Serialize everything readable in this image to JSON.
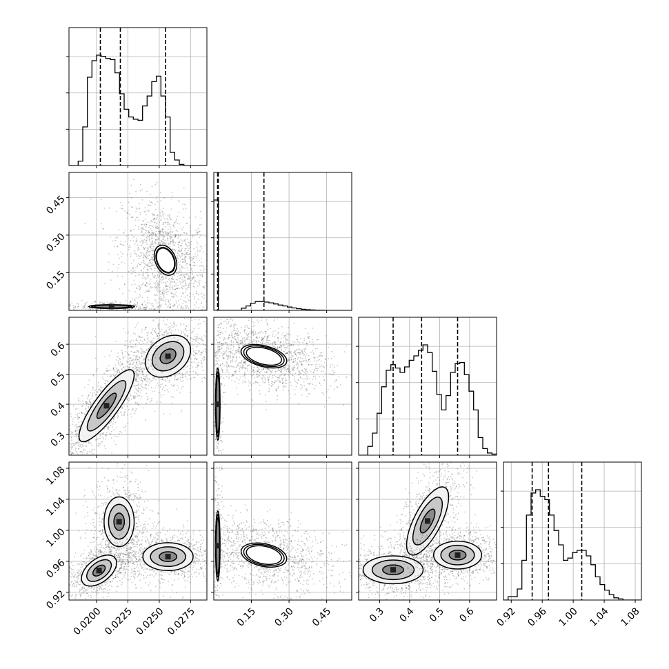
{
  "chart_data": {
    "type": "corner",
    "title": "",
    "grid": true,
    "parameters": [
      {
        "ticks": [
          0.02,
          0.0225,
          0.025,
          0.0275
        ],
        "tick_labels": [
          "0.0200",
          "0.0225",
          "0.0250",
          "0.0275"
        ],
        "range": [
          0.0178,
          0.0288
        ]
      },
      {
        "ticks": [
          0.15,
          0.3,
          0.45
        ],
        "tick_labels": [
          "0.15",
          "0.30",
          "0.45"
        ],
        "range": [
          0.0,
          0.55
        ]
      },
      {
        "ticks": [
          0.3,
          0.4,
          0.5,
          0.6
        ],
        "tick_labels": [
          "0.3",
          "0.4",
          "0.5",
          "0.6"
        ],
        "range": [
          0.23,
          0.69
        ]
      },
      {
        "ticks": [
          0.92,
          0.96,
          1.0,
          1.04,
          1.08
        ],
        "tick_labels": [
          "0.92",
          "0.96",
          "1.00",
          "1.04",
          "1.08"
        ],
        "range": [
          0.91,
          1.088
        ]
      }
    ],
    "histograms": [
      {
        "param": 0,
        "quantiles": [
          0.0203,
          0.0219,
          0.0255
        ],
        "bin_edges": [
          0.0178,
          0.01817,
          0.01853,
          0.0189,
          0.01927,
          0.01963,
          0.02,
          0.02037,
          0.02073,
          0.0211,
          0.02147,
          0.02183,
          0.0222,
          0.02257,
          0.02293,
          0.0233,
          0.02367,
          0.02403,
          0.0244,
          0.02477,
          0.02513,
          0.0255,
          0.02587,
          0.02623,
          0.0266,
          0.02697,
          0.02733,
          0.0277,
          0.02807,
          0.02843,
          0.0288
        ],
        "counts": [
          0.0,
          0.0,
          0.04,
          0.35,
          0.8,
          0.95,
          1.0,
          0.99,
          0.97,
          0.96,
          0.84,
          0.65,
          0.51,
          0.44,
          0.42,
          0.41,
          0.54,
          0.63,
          0.76,
          0.81,
          0.63,
          0.44,
          0.12,
          0.05,
          0.01,
          0.0,
          0.0,
          0.0,
          0.0,
          0.0
        ]
      },
      {
        "param": 1,
        "quantiles": [
          0.015,
          0.018,
          0.2
        ],
        "bin_edges": [
          0.0,
          0.01833,
          0.03667,
          0.055,
          0.07333,
          0.09167,
          0.11,
          0.12833,
          0.14667,
          0.165,
          0.18333,
          0.20167,
          0.22,
          0.23833,
          0.25667,
          0.275,
          0.29333,
          0.31167,
          0.33,
          0.34833,
          0.36667,
          0.385,
          0.40333,
          0.42167,
          0.44,
          0.45833,
          0.47667,
          0.495,
          0.51333,
          0.53167,
          0.55
        ],
        "counts": [
          1.0,
          0.0,
          0.0,
          0.0,
          0.0,
          0.0,
          0.02,
          0.04,
          0.065,
          0.08,
          0.08,
          0.075,
          0.068,
          0.058,
          0.048,
          0.04,
          0.03,
          0.022,
          0.015,
          0.01,
          0.006,
          0.004,
          0.002,
          0.001,
          0.0,
          0.0,
          0.0,
          0.0,
          0.0,
          0.0
        ]
      },
      {
        "param": 2,
        "quantiles": [
          0.345,
          0.44,
          0.56
        ],
        "bin_edges": [
          0.23,
          0.24533,
          0.26067,
          0.276,
          0.29133,
          0.30667,
          0.322,
          0.33733,
          0.35267,
          0.368,
          0.38333,
          0.39867,
          0.414,
          0.42933,
          0.44467,
          0.46,
          0.47533,
          0.49067,
          0.506,
          0.52133,
          0.53667,
          0.552,
          0.56733,
          0.58267,
          0.598,
          0.61333,
          0.62867,
          0.644,
          0.65933,
          0.67467,
          0.69
        ],
        "counts": [
          0.0,
          0.0,
          0.08,
          0.2,
          0.38,
          0.62,
          0.77,
          0.82,
          0.79,
          0.75,
          0.8,
          0.86,
          0.9,
          0.95,
          1.0,
          0.93,
          0.76,
          0.55,
          0.41,
          0.54,
          0.75,
          0.83,
          0.84,
          0.73,
          0.58,
          0.41,
          0.16,
          0.06,
          0.02,
          0.01
        ]
      },
      {
        "param": 3,
        "quantiles": [
          0.947,
          0.968,
          1.011
        ],
        "bin_edges": [
          0.91,
          0.91593,
          0.92187,
          0.9278,
          0.93373,
          0.93967,
          0.9456,
          0.95153,
          0.95747,
          0.9634,
          0.96933,
          0.97527,
          0.9812,
          0.98713,
          0.99307,
          0.999,
          1.00493,
          1.01087,
          1.0168,
          1.02273,
          1.02867,
          1.0346,
          1.04053,
          1.04647,
          1.0524,
          1.05833,
          1.06427,
          1.0702,
          1.07613,
          1.08207,
          1.088
        ],
        "counts": [
          0.0,
          0.03,
          0.03,
          0.1,
          0.36,
          0.77,
          0.97,
          1.0,
          0.94,
          0.91,
          0.77,
          0.63,
          0.5,
          0.36,
          0.38,
          0.43,
          0.45,
          0.45,
          0.4,
          0.32,
          0.21,
          0.14,
          0.09,
          0.05,
          0.02,
          0.01,
          0.0,
          0.0,
          0.0,
          0.0
        ]
      }
    ],
    "scatter_blobs": [
      {
        "row": 1,
        "col": 0,
        "center": [
          0.0255,
          0.2
        ],
        "sd": [
          0.0009,
          0.06
        ],
        "rho": -0.3,
        "n": 1500,
        "contours": [
          [
            0.8,
            0.85,
            1.0
          ]
        ],
        "core_fill": true
      },
      {
        "row": 1,
        "col": 0,
        "center": [
          0.0212,
          0.015
        ],
        "sd": [
          0.0014,
          0.006
        ],
        "rho": 0.0,
        "n": 300,
        "contours": [
          [
            1.0,
            1.15,
            1.3
          ]
        ],
        "core_fill": false
      },
      {
        "row": 2,
        "col": 0,
        "center": [
          0.0257,
          0.56
        ],
        "sd": [
          0.0009,
          0.035
        ],
        "rho": 0.3,
        "n": 900,
        "contours": [
          [
            0.7,
            1.4,
            2.0
          ]
        ],
        "core_fill": false
      },
      {
        "row": 2,
        "col": 0,
        "center": [
          0.0208,
          0.395
        ],
        "sd": [
          0.0011,
          0.06
        ],
        "rho": 0.85,
        "n": 1300,
        "contours": [
          [
            0.7,
            1.4,
            2.0
          ]
        ],
        "core_fill": false
      },
      {
        "row": 2,
        "col": 1,
        "center": [
          0.2,
          0.56
        ],
        "sd": [
          0.07,
          0.03
        ],
        "rho": -0.4,
        "n": 1500,
        "contours": [
          [
            1.0,
            1.15,
            1.3
          ]
        ],
        "core_fill": true
      },
      {
        "row": 2,
        "col": 1,
        "center": [
          0.016,
          0.4
        ],
        "sd": [
          0.006,
          0.08
        ],
        "rho": 0.0,
        "n": 250,
        "contours": [
          [
            1.2,
            1.35,
            1.5
          ]
        ],
        "core_fill": false
      },
      {
        "row": 3,
        "col": 0,
        "center": [
          0.0218,
          1.011
        ],
        "sd": [
          0.0006,
          0.016
        ],
        "rho": 0.0,
        "n": 700,
        "contours": [
          [
            0.7,
            1.4,
            2.0
          ]
        ],
        "core_fill": false
      },
      {
        "row": 3,
        "col": 0,
        "center": [
          0.0202,
          0.948
        ],
        "sd": [
          0.0007,
          0.01
        ],
        "rho": 0.5,
        "n": 900,
        "contours": [
          [
            0.7,
            1.4,
            2.0
          ]
        ],
        "core_fill": false
      },
      {
        "row": 3,
        "col": 0,
        "center": [
          0.0257,
          0.966
        ],
        "sd": [
          0.001,
          0.009
        ],
        "rho": 0.0,
        "n": 900,
        "contours": [
          [
            0.7,
            1.4,
            2.0
          ]
        ],
        "core_fill": false
      },
      {
        "row": 3,
        "col": 1,
        "center": [
          0.2,
          0.968
        ],
        "sd": [
          0.07,
          0.012
        ],
        "rho": -0.3,
        "n": 1200,
        "contours": [
          [
            1.0,
            1.15,
            1.3
          ]
        ],
        "core_fill": true
      },
      {
        "row": 3,
        "col": 1,
        "center": [
          0.016,
          0.98
        ],
        "sd": [
          0.006,
          0.03
        ],
        "rho": 0.0,
        "n": 250,
        "contours": [
          [
            1.2,
            1.35,
            1.5
          ]
        ],
        "core_fill": false
      },
      {
        "row": 3,
        "col": 2,
        "center": [
          0.46,
          1.012
        ],
        "sd": [
          0.035,
          0.022
        ],
        "rho": 0.7,
        "n": 800,
        "contours": [
          [
            0.7,
            1.4,
            2.0
          ]
        ],
        "core_fill": false
      },
      {
        "row": 3,
        "col": 2,
        "center": [
          0.345,
          0.949
        ],
        "sd": [
          0.05,
          0.009
        ],
        "rho": 0.0,
        "n": 900,
        "contours": [
          [
            0.7,
            1.4,
            2.0
          ]
        ],
        "core_fill": false
      },
      {
        "row": 3,
        "col": 2,
        "center": [
          0.56,
          0.968
        ],
        "sd": [
          0.04,
          0.009
        ],
        "rho": 0.0,
        "n": 900,
        "contours": [
          [
            0.7,
            1.4,
            2.0
          ]
        ],
        "core_fill": false
      }
    ]
  }
}
